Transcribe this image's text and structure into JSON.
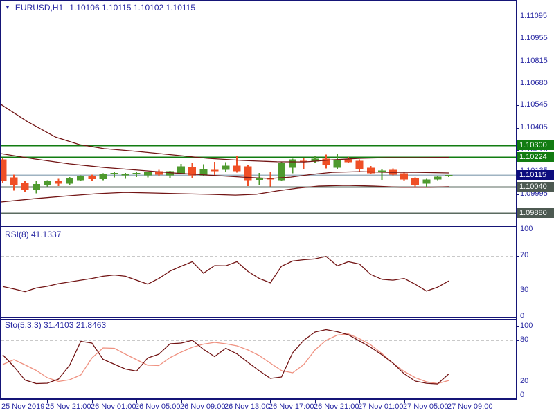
{
  "header": {
    "collapse_icon": "▼",
    "symbol": "EURUSD,H1",
    "quote_values": "1.10106 1.10115 1.10102 1.10115"
  },
  "colors": {
    "background": "#ffffff",
    "border": "#151577",
    "axis_text": "#2929a3",
    "bull_candle": "#4e9a2e",
    "bear_candle": "#ef4f26",
    "band_line": "#721414",
    "rsi_line": "#721414",
    "sto_main_line": "#721414",
    "sto_signal_line": "#ef9180",
    "dashed_level": "#c9c9c9",
    "green_level": "#127c12",
    "current_price_line": "#9fb3c2",
    "support_level_line": "#5b6b60",
    "badge_current": "#0d0d7e",
    "badge_green": "#127c12",
    "badge_gray": "#4d5a52"
  },
  "chart_data": {
    "type": "candlestick",
    "symbol": "EURUSD",
    "timeframe": "H1",
    "title": "EURUSD,H1",
    "current_ohlc": {
      "open": 1.10106,
      "high": 1.10115,
      "low": 1.10102,
      "close": 1.10115
    },
    "y_axis_ticks": [
      "1.11095",
      "1.10955",
      "1.10815",
      "1.10680",
      "1.10545",
      "1.10405",
      "1.10270",
      "1.10135",
      "1.09995",
      "1.09860"
    ],
    "x_axis_labels": [
      {
        "text": "25 Nov 2019",
        "candle_index": 0
      },
      {
        "text": "25 Nov 21:00",
        "candle_index": 4
      },
      {
        "text": "26 Nov 01:00",
        "candle_index": 8
      },
      {
        "text": "26 Nov 05:00",
        "candle_index": 12
      },
      {
        "text": "26 Nov 09:00",
        "candle_index": 16
      },
      {
        "text": "26 Nov 13:00",
        "candle_index": 20
      },
      {
        "text": "26 Nov 17:00",
        "candle_index": 24
      },
      {
        "text": "26 Nov 21:00",
        "candle_index": 28
      },
      {
        "text": "27 Nov 01:00",
        "candle_index": 32
      },
      {
        "text": "27 Nov 05:00",
        "candle_index": 36
      },
      {
        "text": "27 Nov 09:00",
        "candle_index": 40
      }
    ],
    "candles_ohlc": [
      [
        1.1021,
        1.10216,
        1.10068,
        1.10076
      ],
      [
        1.101,
        1.10117,
        1.10018,
        1.10053
      ],
      [
        1.10067,
        1.10075,
        1.10012,
        1.10025
      ],
      [
        1.1002,
        1.10076,
        1.10001,
        1.10058
      ],
      [
        1.10054,
        1.10082,
        1.10044,
        1.10076
      ],
      [
        1.10081,
        1.1009,
        1.10046,
        1.1006
      ],
      [
        1.1006,
        1.10102,
        1.10055,
        1.10096
      ],
      [
        1.10082,
        1.10112,
        1.10076,
        1.10106
      ],
      [
        1.10106,
        1.10117,
        1.1008,
        1.10088
      ],
      [
        1.10088,
        1.10125,
        1.10082,
        1.10118
      ],
      [
        1.10118,
        1.10132,
        1.101,
        1.10126
      ],
      [
        1.10112,
        1.10128,
        1.1009,
        1.10122
      ],
      [
        1.10124,
        1.10136,
        1.10102,
        1.10128
      ],
      [
        1.10113,
        1.10128,
        1.101,
        1.10134
      ],
      [
        1.10138,
        1.10146,
        1.1011,
        1.10117
      ],
      [
        1.10113,
        1.1014,
        1.10095,
        1.10138
      ],
      [
        1.10125,
        1.10182,
        1.10118,
        1.10168
      ],
      [
        1.10164,
        1.1019,
        1.10095,
        1.10113
      ],
      [
        1.10113,
        1.1018,
        1.10105,
        1.10151
      ],
      [
        1.10146,
        1.10196,
        1.10106,
        1.1014
      ],
      [
        1.10146,
        1.10193,
        1.10136,
        1.10172
      ],
      [
        1.10172,
        1.10229,
        1.1013,
        1.10138
      ],
      [
        1.10168,
        1.10175,
        1.10045,
        1.10083
      ],
      [
        1.10085,
        1.10128,
        1.10053,
        1.10093
      ],
      [
        1.10096,
        1.10133,
        1.10043,
        1.10086
      ],
      [
        1.10083,
        1.10196,
        1.1008,
        1.10189
      ],
      [
        1.10159,
        1.10215,
        1.10125,
        1.1021
      ],
      [
        1.10202,
        1.10216,
        1.1015,
        1.10193
      ],
      [
        1.10198,
        1.10231,
        1.1019,
        1.10215
      ],
      [
        1.10215,
        1.1024,
        1.10155,
        1.10174
      ],
      [
        1.10159,
        1.10244,
        1.10152,
        1.1021
      ],
      [
        1.1021,
        1.10226,
        1.10186,
        1.10193
      ],
      [
        1.10202,
        1.1021,
        1.10132,
        1.10148
      ],
      [
        1.10159,
        1.1017,
        1.1012,
        1.10125
      ],
      [
        1.1014,
        1.10148,
        1.10085,
        1.10143
      ],
      [
        1.10147,
        1.10155,
        1.10112,
        1.10117
      ],
      [
        1.10125,
        1.1013,
        1.1008,
        1.10087
      ],
      [
        1.10095,
        1.101,
        1.1004,
        1.10053
      ],
      [
        1.10062,
        1.1009,
        1.1004,
        1.10087
      ],
      [
        1.10087,
        1.1011,
        1.10082,
        1.10104
      ],
      [
        1.10106,
        1.10115,
        1.10102,
        1.10115
      ]
    ],
    "price_levels": [
      {
        "price": "1.10300",
        "kind": "resistance",
        "line": "green_level",
        "badge": "badge_green"
      },
      {
        "price": "1.10224",
        "kind": "resistance",
        "line": "green_level",
        "badge": "badge_green"
      },
      {
        "price": "1.10115",
        "kind": "current-bid",
        "line": "current_price_line",
        "badge": "badge_current"
      },
      {
        "price": "1.10040",
        "kind": "support",
        "line": "support_level_line",
        "badge": "badge_gray"
      },
      {
        "price": "1.09880",
        "kind": "support",
        "line": "support_level_line",
        "badge": "badge_gray"
      }
    ],
    "bollinger_bands": {
      "upper": [
        [
          0,
          1.10554
        ],
        [
          40,
          1.10443
        ],
        [
          80,
          1.10349
        ],
        [
          115,
          1.10302
        ],
        [
          150,
          1.10277
        ],
        [
          200,
          1.10259
        ],
        [
          250,
          1.10238
        ],
        [
          300,
          1.10217
        ],
        [
          350,
          1.10204
        ],
        [
          400,
          1.10196
        ],
        [
          440,
          1.10195
        ],
        [
          480,
          1.10208
        ],
        [
          520,
          1.10217
        ],
        [
          560,
          1.10221
        ],
        [
          600,
          1.10221
        ],
        [
          648,
          1.10223
        ]
      ],
      "middle": [
        [
          0,
          1.10247
        ],
        [
          50,
          1.10213
        ],
        [
          100,
          1.10183
        ],
        [
          150,
          1.10161
        ],
        [
          200,
          1.10144
        ],
        [
          250,
          1.10127
        ],
        [
          300,
          1.10114
        ],
        [
          350,
          1.10101
        ],
        [
          390,
          1.10093
        ],
        [
          420,
          1.10101
        ],
        [
          450,
          1.10118
        ],
        [
          480,
          1.10131
        ],
        [
          520,
          1.10135
        ],
        [
          560,
          1.10131
        ],
        [
          600,
          1.10131
        ],
        [
          648,
          1.10127
        ]
      ],
      "lower": [
        [
          0,
          1.09947
        ],
        [
          50,
          1.09968
        ],
        [
          100,
          1.09986
        ],
        [
          140,
          1.09999
        ],
        [
          180,
          1.10007
        ],
        [
          220,
          1.10003
        ],
        [
          260,
          1.09999
        ],
        [
          300,
          1.09995
        ],
        [
          340,
          1.0999
        ],
        [
          370,
          1.09995
        ],
        [
          400,
          1.10016
        ],
        [
          430,
          1.10033
        ],
        [
          460,
          1.10046
        ],
        [
          500,
          1.1005
        ],
        [
          540,
          1.10046
        ],
        [
          580,
          1.10038
        ],
        [
          620,
          1.10038
        ],
        [
          648,
          1.10042
        ]
      ]
    },
    "indicators": [
      {
        "name": "RSI",
        "label": "RSI(8) 41.1337",
        "period": 8,
        "current_value": 41.1337,
        "y_ticks": [
          100,
          70,
          30,
          0
        ],
        "dashed_levels": [
          70,
          30
        ],
        "values": [
          34.7,
          32,
          28.9,
          33,
          35,
          38,
          40,
          42,
          44,
          46.5,
          47.9,
          46.5,
          42,
          37.5,
          44,
          52.5,
          58,
          63.2,
          50,
          58.7,
          58.5,
          63.2,
          52,
          44,
          39,
          58,
          64,
          65.5,
          66.4,
          69.3,
          58.5,
          63.2,
          60.5,
          48.6,
          43,
          42,
          44,
          37.3,
          29.5,
          34,
          41.13
        ]
      },
      {
        "name": "Stochastic",
        "label": "Sto(5,3,3) 31.4103 21.8463",
        "params": "5,3,3",
        "main_current": 31.4103,
        "signal_current": 21.8463,
        "y_ticks": [
          100,
          80,
          20,
          0
        ],
        "dashed_levels": [
          80,
          20
        ],
        "main": [
          59,
          42,
          22.5,
          17.5,
          18,
          24,
          44,
          78.5,
          76,
          52.5,
          45.5,
          38.5,
          35.5,
          54.5,
          60,
          75,
          76,
          80,
          67,
          56.5,
          68.5,
          60.5,
          48,
          36,
          25,
          27,
          62,
          80,
          92,
          95.5,
          92.5,
          88,
          79,
          69.9,
          59.2,
          47,
          31.7,
          21,
          17.9,
          16.9,
          31.41
        ],
        "signal": [
          45,
          52,
          44.5,
          36.5,
          26,
          20.5,
          23,
          30,
          54.5,
          69,
          68.5,
          60,
          52,
          44,
          43.5,
          55,
          63,
          70,
          74.5,
          77,
          75,
          72,
          66,
          58,
          47,
          36.3,
          33,
          45,
          66,
          80,
          87.5,
          89.3,
          82.3,
          73.5,
          61,
          47,
          35,
          26,
          20,
          17.5,
          21.85
        ]
      }
    ]
  }
}
